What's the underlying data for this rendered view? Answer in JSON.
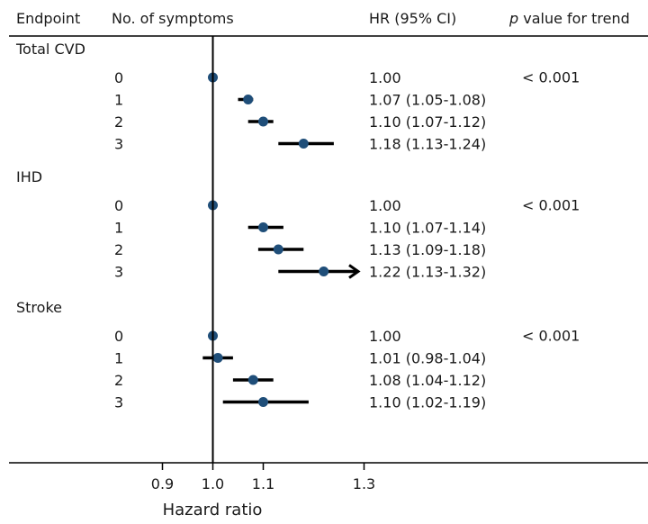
{
  "header": {
    "endpoint": "Endpoint",
    "symptoms": "No. of symptoms",
    "hr": "HR (95% CI)",
    "p_prefix": "p",
    "p_suffix": " value for trend"
  },
  "chart_data": {
    "type": "forest",
    "xlabel": "Hazard ratio",
    "xlim": [
      0.875,
      1.38
    ],
    "xticks": [
      0.9,
      1.0,
      1.1,
      1.3
    ],
    "xtick_labels": [
      "0.9",
      "1.0",
      "1.1",
      "1.3"
    ],
    "reference_line": 1.0,
    "colors": {
      "point": "#1f4e79",
      "line": "#000000"
    },
    "groups": [
      {
        "name": "Total CVD",
        "p_trend": "< 0.001",
        "rows": [
          {
            "level": "0",
            "hr": 1.0,
            "lo": 1.0,
            "hi": 1.0,
            "label": "1.00"
          },
          {
            "level": "1",
            "hr": 1.07,
            "lo": 1.05,
            "hi": 1.08,
            "label": "1.07 (1.05-1.08)"
          },
          {
            "level": "2",
            "hr": 1.1,
            "lo": 1.07,
            "hi": 1.12,
            "label": "1.10 (1.07-1.12)"
          },
          {
            "level": "3",
            "hr": 1.18,
            "lo": 1.13,
            "hi": 1.24,
            "label": "1.18 (1.13-1.24)"
          }
        ]
      },
      {
        "name": "IHD",
        "p_trend": "< 0.001",
        "rows": [
          {
            "level": "0",
            "hr": 1.0,
            "lo": 1.0,
            "hi": 1.0,
            "label": "1.00"
          },
          {
            "level": "1",
            "hr": 1.1,
            "lo": 1.07,
            "hi": 1.14,
            "label": "1.10 (1.07-1.14)"
          },
          {
            "level": "2",
            "hr": 1.13,
            "lo": 1.09,
            "hi": 1.18,
            "label": "1.13 (1.09-1.18)"
          },
          {
            "level": "3",
            "hr": 1.22,
            "lo": 1.13,
            "hi": 1.32,
            "label": "1.22 (1.13-1.32)",
            "arrow_right": true
          }
        ]
      },
      {
        "name": "Stroke",
        "p_trend": "< 0.001",
        "rows": [
          {
            "level": "0",
            "hr": 1.0,
            "lo": 1.0,
            "hi": 1.0,
            "label": "1.00"
          },
          {
            "level": "1",
            "hr": 1.01,
            "lo": 0.98,
            "hi": 1.04,
            "label": "1.01 (0.98-1.04)"
          },
          {
            "level": "2",
            "hr": 1.08,
            "lo": 1.04,
            "hi": 1.12,
            "label": "1.08 (1.04-1.12)"
          },
          {
            "level": "3",
            "hr": 1.1,
            "lo": 1.02,
            "hi": 1.19,
            "label": "1.10 (1.02-1.19)"
          }
        ]
      }
    ]
  }
}
